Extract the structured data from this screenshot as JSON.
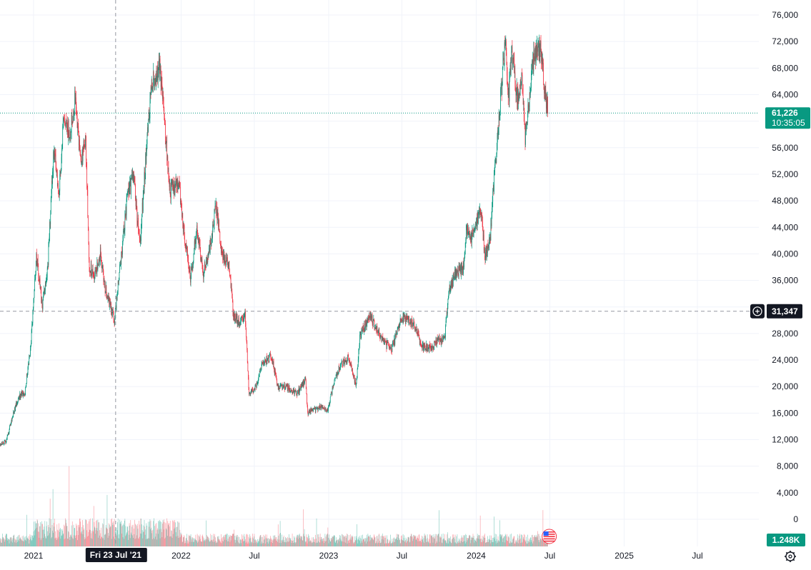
{
  "chart_data": {
    "type": "candlestick",
    "instrument_note": "",
    "y_axis": {
      "ticks": [
        0,
        4000,
        8000,
        12000,
        16000,
        20000,
        24000,
        28000,
        32000,
        36000,
        40000,
        44000,
        48000,
        52000,
        56000,
        60000,
        64000,
        68000,
        72000,
        76000
      ],
      "tick_labels": [
        "0",
        "4,000",
        "8,000",
        "12,000",
        "16,000",
        "20,000",
        "24,000",
        "28,000",
        "",
        "36,000",
        "40,000",
        "44,000",
        "48,000",
        "52,000",
        "56,000",
        "",
        "64,000",
        "68,000",
        "72,000",
        "76,000"
      ],
      "range": [
        0,
        76000
      ],
      "position": "right"
    },
    "x_axis": {
      "labels": [
        "2021",
        "2022",
        "Jul",
        "2023",
        "Jul",
        "2024",
        "Jul",
        "2025",
        "Jul"
      ],
      "dates": [
        "2021-01-01",
        "2022-01-01",
        "2022-07-01",
        "2023-01-01",
        "2023-07-01",
        "2024-01-01",
        "2024-07-01",
        "2025-01-01",
        "2025-07-01"
      ],
      "range": [
        "2020-10-10",
        "2025-11-30"
      ]
    },
    "price_path": [
      [
        "2020-10-10",
        11400
      ],
      [
        "2020-10-25",
        11700
      ],
      [
        "2020-11-10",
        15500
      ],
      [
        "2020-11-25",
        18500
      ],
      [
        "2020-12-10",
        19000
      ],
      [
        "2020-12-25",
        26000
      ],
      [
        "2021-01-08",
        40000
      ],
      [
        "2021-01-22",
        32000
      ],
      [
        "2021-02-05",
        38000
      ],
      [
        "2021-02-20",
        56000
      ],
      [
        "2021-03-05",
        49000
      ],
      [
        "2021-03-15",
        59000
      ],
      [
        "2021-04-01",
        58500
      ],
      [
        "2021-04-14",
        63500
      ],
      [
        "2021-04-28",
        54000
      ],
      [
        "2021-05-10",
        57000
      ],
      [
        "2021-05-19",
        38000
      ],
      [
        "2021-05-31",
        36500
      ],
      [
        "2021-06-15",
        40000
      ],
      [
        "2021-06-28",
        34500
      ],
      [
        "2021-07-20",
        30000
      ],
      [
        "2021-08-05",
        39000
      ],
      [
        "2021-08-22",
        49000
      ],
      [
        "2021-09-06",
        51500
      ],
      [
        "2021-09-21",
        41000
      ],
      [
        "2021-10-06",
        55000
      ],
      [
        "2021-10-20",
        65500
      ],
      [
        "2021-11-09",
        68000
      ],
      [
        "2021-11-25",
        57000
      ],
      [
        "2021-12-04",
        49500
      ],
      [
        "2021-12-27",
        50500
      ],
      [
        "2022-01-10",
        42000
      ],
      [
        "2022-01-24",
        36500
      ],
      [
        "2022-02-10",
        44000
      ],
      [
        "2022-02-24",
        37000
      ],
      [
        "2022-03-10",
        39500
      ],
      [
        "2022-03-28",
        47500
      ],
      [
        "2022-04-12",
        40000
      ],
      [
        "2022-04-30",
        38000
      ],
      [
        "2022-05-10",
        31000
      ],
      [
        "2022-05-25",
        29500
      ],
      [
        "2022-06-08",
        31000
      ],
      [
        "2022-06-18",
        19000
      ],
      [
        "2022-07-05",
        20000
      ],
      [
        "2022-07-20",
        23500
      ],
      [
        "2022-08-13",
        24500
      ],
      [
        "2022-08-28",
        20000
      ],
      [
        "2022-09-15",
        20000
      ],
      [
        "2022-09-30",
        19500
      ],
      [
        "2022-10-15",
        19000
      ],
      [
        "2022-11-05",
        21000
      ],
      [
        "2022-11-10",
        16000
      ],
      [
        "2022-11-25",
        16500
      ],
      [
        "2022-12-15",
        17000
      ],
      [
        "2022-12-30",
        16500
      ],
      [
        "2023-01-15",
        21000
      ],
      [
        "2023-02-01",
        23500
      ],
      [
        "2023-02-20",
        24500
      ],
      [
        "2023-03-10",
        20000
      ],
      [
        "2023-03-20",
        28000
      ],
      [
        "2023-04-14",
        30500
      ],
      [
        "2023-04-28",
        29000
      ],
      [
        "2023-05-15",
        27000
      ],
      [
        "2023-06-05",
        25500
      ],
      [
        "2023-06-20",
        28500
      ],
      [
        "2023-06-30",
        30500
      ],
      [
        "2023-07-15",
        30000
      ],
      [
        "2023-08-05",
        29000
      ],
      [
        "2023-08-18",
        26000
      ],
      [
        "2023-09-10",
        25800
      ],
      [
        "2023-09-30",
        27000
      ],
      [
        "2023-10-15",
        27000
      ],
      [
        "2023-10-24",
        34000
      ],
      [
        "2023-11-10",
        37000
      ],
      [
        "2023-11-30",
        37800
      ],
      [
        "2023-12-08",
        44000
      ],
      [
        "2023-12-18",
        42000
      ],
      [
        "2024-01-02",
        45000
      ],
      [
        "2024-01-12",
        46500
      ],
      [
        "2024-01-23",
        39500
      ],
      [
        "2024-02-05",
        43000
      ],
      [
        "2024-02-15",
        52000
      ],
      [
        "2024-02-28",
        62000
      ],
      [
        "2024-03-06",
        67000
      ],
      [
        "2024-03-14",
        73500
      ],
      [
        "2024-03-20",
        62500
      ],
      [
        "2024-03-28",
        70500
      ],
      [
        "2024-04-13",
        63000
      ],
      [
        "2024-04-22",
        66500
      ],
      [
        "2024-05-01",
        57500
      ],
      [
        "2024-05-15",
        66000
      ],
      [
        "2024-05-22",
        69500
      ],
      [
        "2024-06-07",
        71000
      ],
      [
        "2024-06-18",
        65000
      ],
      [
        "2024-06-26",
        61226
      ]
    ],
    "last_price": {
      "value": 61226,
      "label": "61,226",
      "countdown": "10:35:05",
      "color": "#089981"
    },
    "crosshair": {
      "price_label": "31,347",
      "price_value": 31347,
      "date_label": "Fri 23 Jul '21",
      "date": "2021-07-23"
    },
    "volume_scale_label": "1.248K",
    "colors": {
      "up": "#089981",
      "down": "#f23645",
      "grid": "#f0f3fa",
      "text": "#131722",
      "crosshair": "#9598a1",
      "crosshair_badge": "#131722"
    },
    "grid": true,
    "legend": "none"
  },
  "ui": {
    "settings_icon": "gear-icon",
    "add_alert_icon": "plus-circle-icon",
    "flag_icon": "us-flag-icon"
  }
}
